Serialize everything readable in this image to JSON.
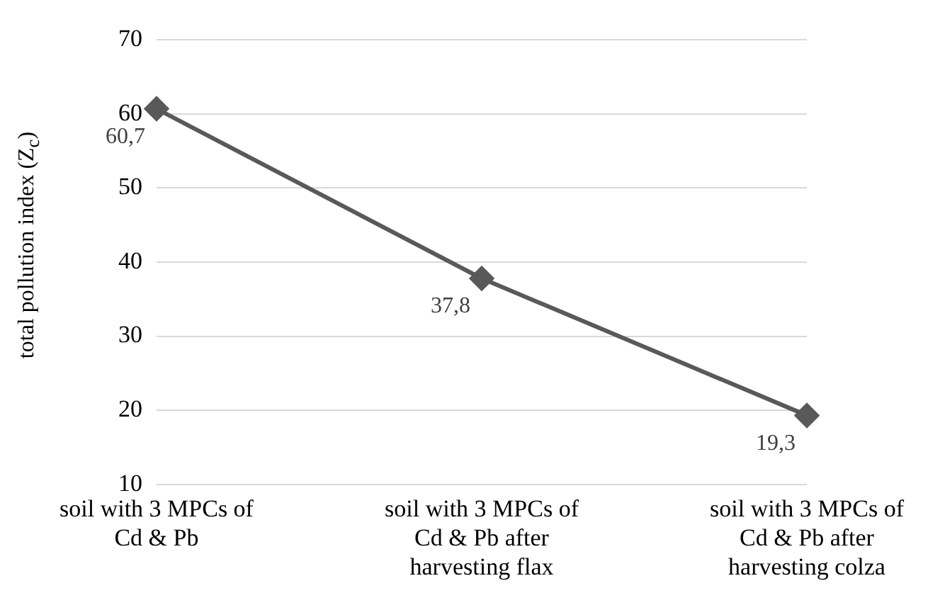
{
  "chart_data": {
    "type": "line",
    "ylabel": "total pollution index (Z$_{c}$)",
    "categories": [
      "soil with 3 MPCs of Cd & Pb",
      "soil with 3 MPCs of Cd & Pb after harvesting flax",
      "soil with 3 MPCs of Cd & Pb after harvesting colza"
    ],
    "series": [
      {
        "color": "#595959",
        "values": [
          60.7,
          37.8,
          19.3
        ],
        "value_labels": [
          "60,7",
          "37,8",
          "19,3"
        ]
      }
    ],
    "ylim": [
      10,
      70
    ],
    "yticks": [
      10,
      20,
      30,
      40,
      50,
      60,
      70
    ],
    "grid": "y",
    "legend": false,
    "marker": "diamond",
    "line_style": "solid"
  }
}
